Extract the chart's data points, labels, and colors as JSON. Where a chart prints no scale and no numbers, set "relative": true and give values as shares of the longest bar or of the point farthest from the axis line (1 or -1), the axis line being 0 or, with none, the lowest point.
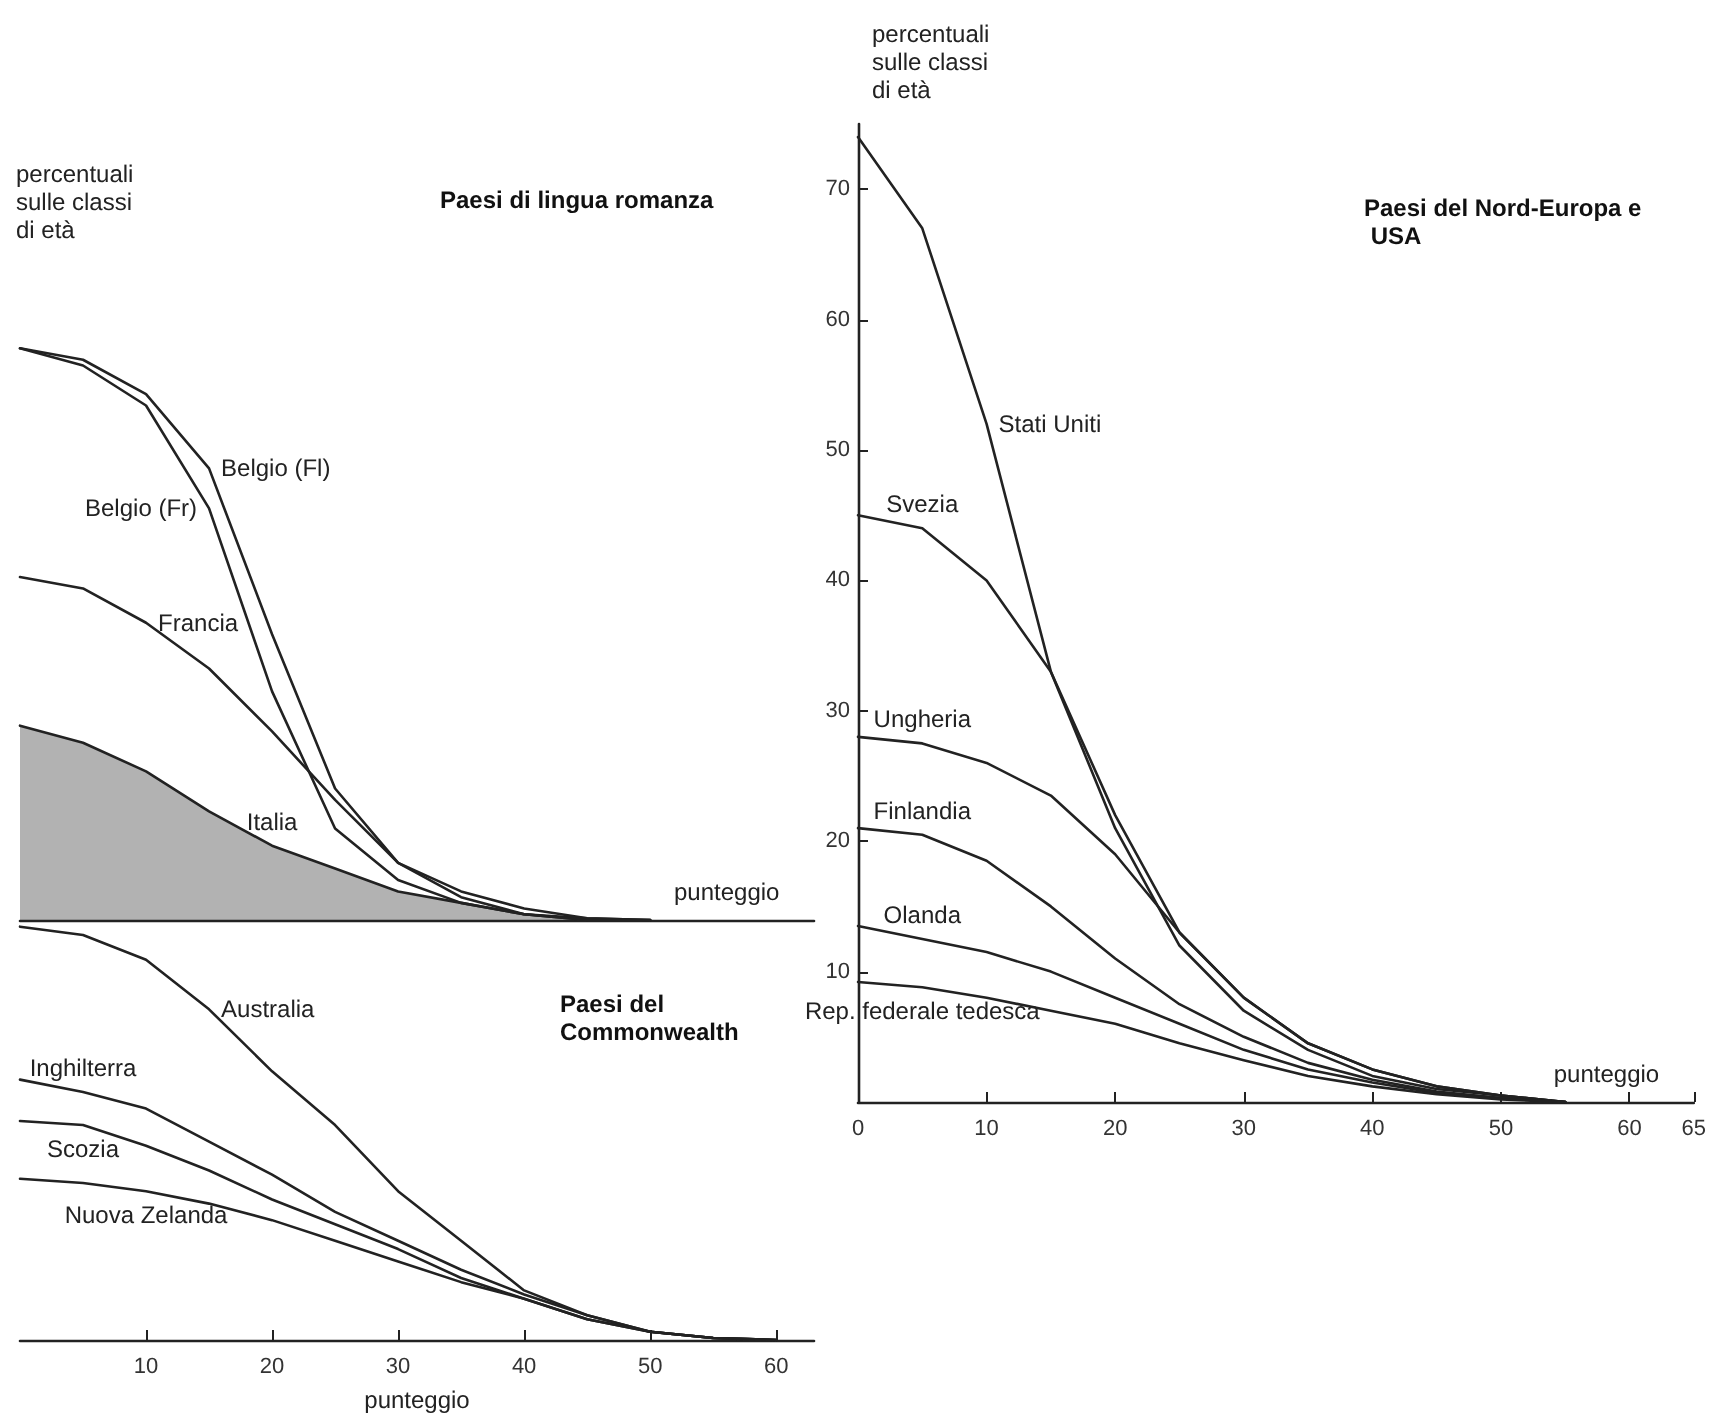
{
  "chart_data": [
    {
      "type": "line",
      "title": "Paesi di lingua romanza",
      "ylabel": "percentuali sulle classi di età",
      "xlabel": "punteggio",
      "relative": true,
      "tick_labels": false,
      "marker": "none",
      "line_style": "solid",
      "xlim": [
        0,
        63
      ],
      "x": [
        0,
        5,
        10,
        15,
        20,
        25,
        30,
        35,
        40,
        45,
        50
      ],
      "series": [
        {
          "name": "Belgio (Fl)",
          "color": "#222222",
          "values": [
            1,
            0.98,
            0.92,
            0.79,
            0.5,
            0.23,
            0.1,
            0.04,
            0.01,
            0.003,
            0
          ]
        },
        {
          "name": "Belgio (Fr)",
          "color": "#222222",
          "x": [
            0,
            5,
            10,
            15,
            20,
            25,
            30,
            35,
            40,
            45
          ],
          "values": [
            1,
            0.97,
            0.9,
            0.72,
            0.4,
            0.16,
            0.07,
            0.03,
            0.01,
            0
          ]
        },
        {
          "name": "Francia",
          "color": "#222222",
          "values": [
            0.6,
            0.58,
            0.52,
            0.44,
            0.33,
            0.21,
            0.1,
            0.05,
            0.02,
            0.003,
            0
          ]
        },
        {
          "name": "Italia",
          "type": "area",
          "color": "#222222",
          "values": [
            0.34,
            0.31,
            0.26,
            0.19,
            0.13,
            0.09,
            0.05,
            0.03,
            0.01,
            0,
            0
          ]
        }
      ]
    },
    {
      "type": "line",
      "title": "Paesi del Commonwealth",
      "xlabel": "punteggio",
      "relative": true,
      "tick_labels": "x",
      "marker": "none",
      "line_style": "solid",
      "xlim": [
        0,
        63
      ],
      "xticks": [
        10,
        20,
        30,
        40,
        50,
        60
      ],
      "x": [
        0,
        5,
        10,
        15,
        20,
        25,
        30,
        35,
        40,
        45,
        50,
        55,
        60
      ],
      "series": [
        {
          "name": "Australia",
          "color": "#222222",
          "values": [
            1,
            0.98,
            0.92,
            0.8,
            0.65,
            0.52,
            0.36,
            0.24,
            0.12,
            0.06,
            0.02,
            0.005,
            0
          ]
        },
        {
          "name": "Inghilterra",
          "color": "#222222",
          "values": [
            0.63,
            0.6,
            0.56,
            0.48,
            0.4,
            0.31,
            0.24,
            0.17,
            0.11,
            0.06,
            0.02,
            0.005,
            0
          ]
        },
        {
          "name": "Scozia",
          "color": "#222222",
          "values": [
            0.53,
            0.52,
            0.47,
            0.41,
            0.34,
            0.28,
            0.22,
            0.15,
            0.1,
            0.05,
            0.02,
            0.005,
            0
          ]
        },
        {
          "name": "Nuova Zelanda",
          "color": "#222222",
          "values": [
            0.39,
            0.38,
            0.36,
            0.33,
            0.29,
            0.24,
            0.19,
            0.14,
            0.1,
            0.05,
            0.02,
            0.005,
            0
          ]
        }
      ]
    },
    {
      "type": "line",
      "title": "Paesi del Nord-Europa e USA",
      "ylabel": "percentuali sulle classi di età",
      "xlabel": "punteggio",
      "marker": "none",
      "line_style": "solid",
      "xlim": [
        0,
        65
      ],
      "xticks": [
        0,
        10,
        20,
        30,
        40,
        50,
        60,
        65
      ],
      "ylim": [
        0,
        75
      ],
      "yticks": [
        10,
        20,
        30,
        40,
        50,
        60,
        70
      ],
      "x": [
        0,
        5,
        10,
        15,
        20,
        25,
        30,
        35,
        40,
        45,
        50,
        55
      ],
      "series": [
        {
          "name": "Stati Uniti",
          "color": "#222222",
          "values": [
            74,
            67,
            52,
            33,
            21,
            12,
            7,
            4,
            2,
            1,
            0.5,
            0
          ]
        },
        {
          "name": "Svezia",
          "color": "#222222",
          "values": [
            45,
            44,
            40,
            33,
            22,
            13,
            8,
            4.5,
            2.5,
            1.2,
            0.5,
            0
          ]
        },
        {
          "name": "Ungheria",
          "color": "#222222",
          "values": [
            28,
            27.5,
            26,
            23.5,
            19,
            13,
            8,
            4.5,
            2.5,
            1.2,
            0.5,
            0
          ]
        },
        {
          "name": "Finlandia",
          "color": "#222222",
          "values": [
            21,
            20.5,
            18.5,
            15,
            11,
            7.5,
            5,
            3,
            1.7,
            0.8,
            0.3,
            0
          ]
        },
        {
          "name": "Olanda",
          "color": "#222222",
          "values": [
            13.5,
            12.5,
            11.5,
            10,
            8,
            6,
            4,
            2.5,
            1.5,
            0.7,
            0.3,
            0
          ]
        },
        {
          "name": "Rep. federale tedesca",
          "color": "#222222",
          "values": [
            9.2,
            8.8,
            8,
            7,
            6,
            4.5,
            3.2,
            2,
            1.2,
            0.6,
            0.2,
            0
          ]
        }
      ]
    }
  ]
}
